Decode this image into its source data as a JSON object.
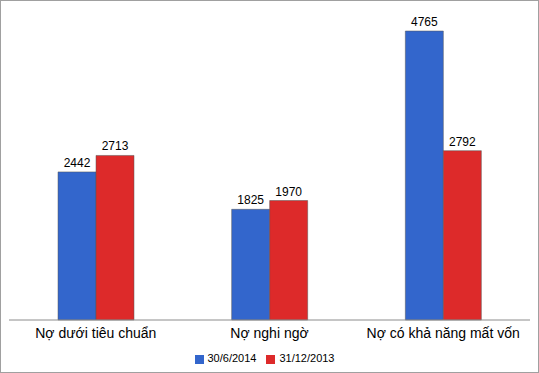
{
  "chart_data": {
    "type": "bar",
    "categories": [
      "Nợ dưới tiêu chuẩn",
      "Nợ nghi ngờ",
      "Nợ có khả năng mất vốn"
    ],
    "series": [
      {
        "name": "30/6/2014",
        "color": "#3366cc",
        "values": [
          2442,
          1825,
          4765
        ]
      },
      {
        "name": "31/12/2013",
        "color": "#dd2a2a",
        "values": [
          2713,
          1970,
          2792
        ]
      }
    ],
    "data_labels": true,
    "legend": "bottom",
    "tick_labels": "x",
    "grid": false
  }
}
